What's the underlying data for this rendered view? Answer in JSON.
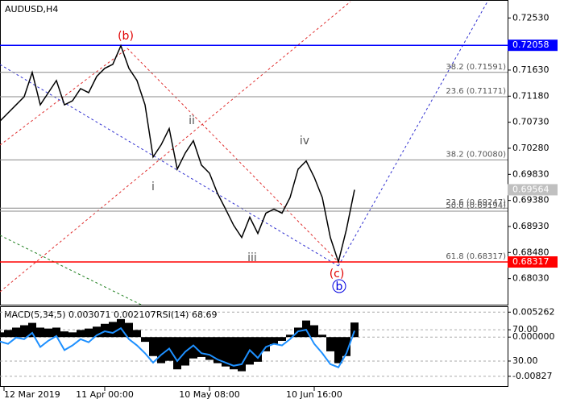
{
  "chart_data": [
    {
      "type": "line",
      "title": "AUDUSD,H4",
      "x": [
        0,
        1,
        2,
        3,
        4,
        5,
        6,
        7,
        8,
        9,
        10,
        11,
        12,
        13,
        14,
        15,
        16,
        17,
        18,
        19,
        20,
        21,
        22,
        23,
        24,
        25,
        26,
        27,
        28,
        29,
        30,
        31,
        32,
        33,
        34,
        35,
        36,
        37,
        38,
        39,
        40,
        41,
        42,
        43,
        44
      ],
      "values": [
        0.7075,
        0.7089,
        0.7103,
        0.7117,
        0.7159,
        0.7103,
        0.7124,
        0.7145,
        0.7103,
        0.711,
        0.7131,
        0.7124,
        0.7152,
        0.7166,
        0.7173,
        0.7205,
        0.7166,
        0.7145,
        0.7103,
        0.7013,
        0.7034,
        0.7062,
        0.6992,
        0.702,
        0.7041,
        0.6999,
        0.6985,
        0.695,
        0.6923,
        0.6895,
        0.6874,
        0.6909,
        0.6881,
        0.6916,
        0.6923,
        0.6916,
        0.6943,
        0.6992,
        0.7006,
        0.6978,
        0.6943,
        0.6874,
        0.6832,
        0.6888,
        0.69564
      ],
      "color": "#000000",
      "xlim": [
        0,
        63
      ],
      "xticks": [
        {
          "value": 0.5,
          "label": "12 Mar 2019"
        },
        {
          "value": 13,
          "label": "11 Apr 00:00"
        },
        {
          "value": 26,
          "label": "10 May 08:00"
        },
        {
          "value": 39,
          "label": "10 Jun 16:00"
        }
      ],
      "ylim": [
        0.6758,
        0.7284
      ],
      "yticks": [
        {
          "value": 0.7253,
          "label": "0.72530"
        },
        {
          "value": 0.7163,
          "label": "0.71630"
        },
        {
          "value": 0.7118,
          "label": "0.71180"
        },
        {
          "value": 0.7073,
          "label": "0.70730"
        },
        {
          "value": 0.7028,
          "label": "0.70280"
        },
        {
          "value": 0.6983,
          "label": "0.69830"
        },
        {
          "value": 0.6938,
          "label": "0.69380"
        },
        {
          "value": 0.6893,
          "label": "0.68930"
        },
        {
          "value": 0.6848,
          "label": "0.68480"
        },
        {
          "value": 0.6803,
          "label": "0.68030"
        }
      ],
      "levels": [
        {
          "value": 0.71591,
          "label": "38.2 (0.71591)"
        },
        {
          "value": 0.71171,
          "label": "23.6 (0.71171)"
        },
        {
          "value": 0.7008,
          "label": "38.2 (0.70080)"
        },
        {
          "value": 0.69247,
          "label": "23.6 (0.69247)"
        },
        {
          "value": 0.69194,
          "label": "50.0 (0.69194)"
        },
        {
          "value": 0.68317,
          "label": "61.8 (0.68317)"
        }
      ],
      "lines": [
        {
          "value": 0.72058,
          "color": "#0000ff"
        },
        {
          "value": 0.68317,
          "color": "#ff0000"
        }
      ],
      "price_marks": [
        {
          "value": 0.72058,
          "color": "#0000ff"
        },
        {
          "value": 0.69564,
          "color": "#c0c0c0"
        },
        {
          "value": 0.68317,
          "color": "#ff0000"
        }
      ],
      "annotations": [
        "(b)",
        "ii",
        "i",
        "iv",
        "iii",
        "(c)",
        "b"
      ]
    },
    {
      "type": "bar",
      "title": "MACD(5,34,5) 0.003071 0.002107",
      "values": [
        0.001,
        0.0015,
        0.002,
        0.0025,
        0.003,
        0.002,
        0.0018,
        0.002,
        0.0012,
        0.001,
        0.0015,
        0.0018,
        0.0022,
        0.0028,
        0.0032,
        0.0038,
        0.003,
        0.0015,
        -0.001,
        -0.004,
        -0.0055,
        -0.005,
        -0.0068,
        -0.006,
        -0.0045,
        -0.0042,
        -0.0048,
        -0.0055,
        -0.0062,
        -0.0068,
        -0.0072,
        -0.0058,
        -0.0052,
        -0.003,
        -0.0015,
        -0.0008,
        0.0005,
        0.002,
        0.0035,
        0.0025,
        0.0005,
        -0.003,
        -0.0055,
        -0.004,
        0.003071
      ],
      "color": "#000000",
      "ylim": [
        -0.0105,
        0.0065
      ],
      "yticks": [
        {
          "value": 0.005262,
          "label": "0.005262"
        },
        {
          "value": 0,
          "label": "0.000000"
        },
        {
          "value": -0.00827,
          "label": "-0.00827"
        }
      ]
    },
    {
      "type": "line",
      "title": "RSI(14) 68.69",
      "values": [
        55,
        52,
        60,
        58,
        66,
        48,
        56,
        62,
        44,
        50,
        58,
        54,
        63,
        68,
        66,
        72,
        58,
        50,
        40,
        28,
        38,
        46,
        30,
        42,
        50,
        40,
        38,
        32,
        28,
        24,
        26,
        44,
        34,
        48,
        52,
        50,
        58,
        68,
        70,
        52,
        40,
        26,
        22,
        40,
        68.69
      ],
      "color": "#1e90ff",
      "ylim": [
        -3,
        100
      ],
      "yticks": [
        {
          "value": 70,
          "label": "70.00"
        },
        {
          "value": 30,
          "label": "30.00"
        }
      ]
    }
  ]
}
